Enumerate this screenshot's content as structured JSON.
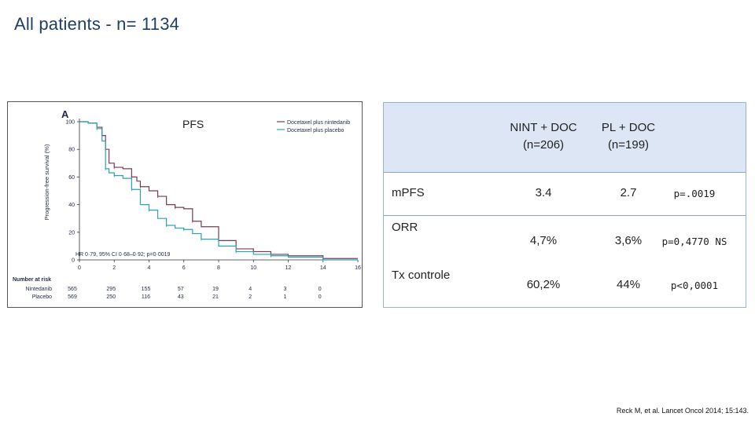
{
  "slide": {
    "title": "All patients - n= 1134",
    "citation": "Reck M, et al. Lancet Oncol 2014; 15:143."
  },
  "figure": {
    "panel_letter": "A",
    "overlay_label": "PFS",
    "ylabel": "Progression-free survival (%)",
    "legend": [
      "Docetaxel plus nintedanib",
      "Docetaxel plus placebo"
    ],
    "hr_text": "HR 0·79, 95% CI 0·68–0·92; p=0·0019",
    "risk_title": "Number at risk",
    "risk_rows": [
      {
        "label": "Nintedanib",
        "values": [
          "565",
          "295",
          "155",
          "57",
          "19",
          "4",
          "3",
          "0"
        ]
      },
      {
        "label": "Placebo",
        "values": [
          "569",
          "250",
          "116",
          "43",
          "21",
          "2",
          "1",
          "0"
        ]
      }
    ],
    "colors": {
      "nintedanib": "#7a3b52",
      "placebo": "#2aa3b8"
    }
  },
  "chart_data": {
    "type": "line",
    "title": "",
    "xlabel": "",
    "ylabel": "Progression-free survival (%)",
    "xlim": [
      0,
      16
    ],
    "ylim": [
      0,
      100
    ],
    "x_ticks": [
      0,
      2,
      4,
      6,
      8,
      10,
      12,
      14,
      16
    ],
    "y_ticks": [
      0,
      20,
      40,
      60,
      80,
      100
    ],
    "legend_position": "top-right",
    "series": [
      {
        "name": "Docetaxel plus nintedanib",
        "color": "#7a3b52",
        "points": [
          [
            0,
            100
          ],
          [
            0.5,
            99
          ],
          [
            1,
            96
          ],
          [
            1.3,
            90
          ],
          [
            1.5,
            80
          ],
          [
            1.7,
            70
          ],
          [
            2,
            67
          ],
          [
            2.5,
            66
          ],
          [
            3,
            60
          ],
          [
            3.3,
            57
          ],
          [
            3.5,
            53
          ],
          [
            4,
            50
          ],
          [
            4.5,
            46
          ],
          [
            5,
            40
          ],
          [
            5.5,
            38
          ],
          [
            6,
            37
          ],
          [
            6.5,
            28
          ],
          [
            7,
            24
          ],
          [
            8,
            14
          ],
          [
            9,
            8
          ],
          [
            10,
            6
          ],
          [
            11,
            4
          ],
          [
            12,
            3
          ],
          [
            14,
            1
          ],
          [
            16,
            1
          ]
        ]
      },
      {
        "name": "Docetaxel plus placebo",
        "color": "#2aa3b8",
        "points": [
          [
            0,
            100
          ],
          [
            0.5,
            99
          ],
          [
            1,
            95
          ],
          [
            1.3,
            86
          ],
          [
            1.5,
            66
          ],
          [
            1.7,
            63
          ],
          [
            2,
            61
          ],
          [
            2.5,
            59
          ],
          [
            3,
            51
          ],
          [
            3.5,
            40
          ],
          [
            4,
            36
          ],
          [
            4.5,
            30
          ],
          [
            5,
            25
          ],
          [
            5.5,
            23
          ],
          [
            6,
            22
          ],
          [
            6.5,
            19
          ],
          [
            7,
            15
          ],
          [
            8,
            10
          ],
          [
            9,
            6
          ],
          [
            10,
            4
          ],
          [
            11,
            3
          ],
          [
            12,
            2
          ],
          [
            14,
            0
          ],
          [
            16,
            0
          ]
        ]
      }
    ]
  },
  "table": {
    "headers": [
      {
        "line1": "NINT + DOC",
        "line2": "(n=206)"
      },
      {
        "line1": "PL + DOC",
        "line2": "(n=199)"
      }
    ],
    "rows": [
      {
        "label": "mPFS",
        "v1": "3.4",
        "v2": "2.7",
        "p": "p=.0019"
      },
      {
        "label": "ORR",
        "v1": "4,7%",
        "v2": "3,6%",
        "p": "p=0,4770 NS"
      },
      {
        "label": "Tx controle",
        "v1": "60,2%",
        "v2": "44%",
        "p": "p<0,0001"
      }
    ]
  }
}
